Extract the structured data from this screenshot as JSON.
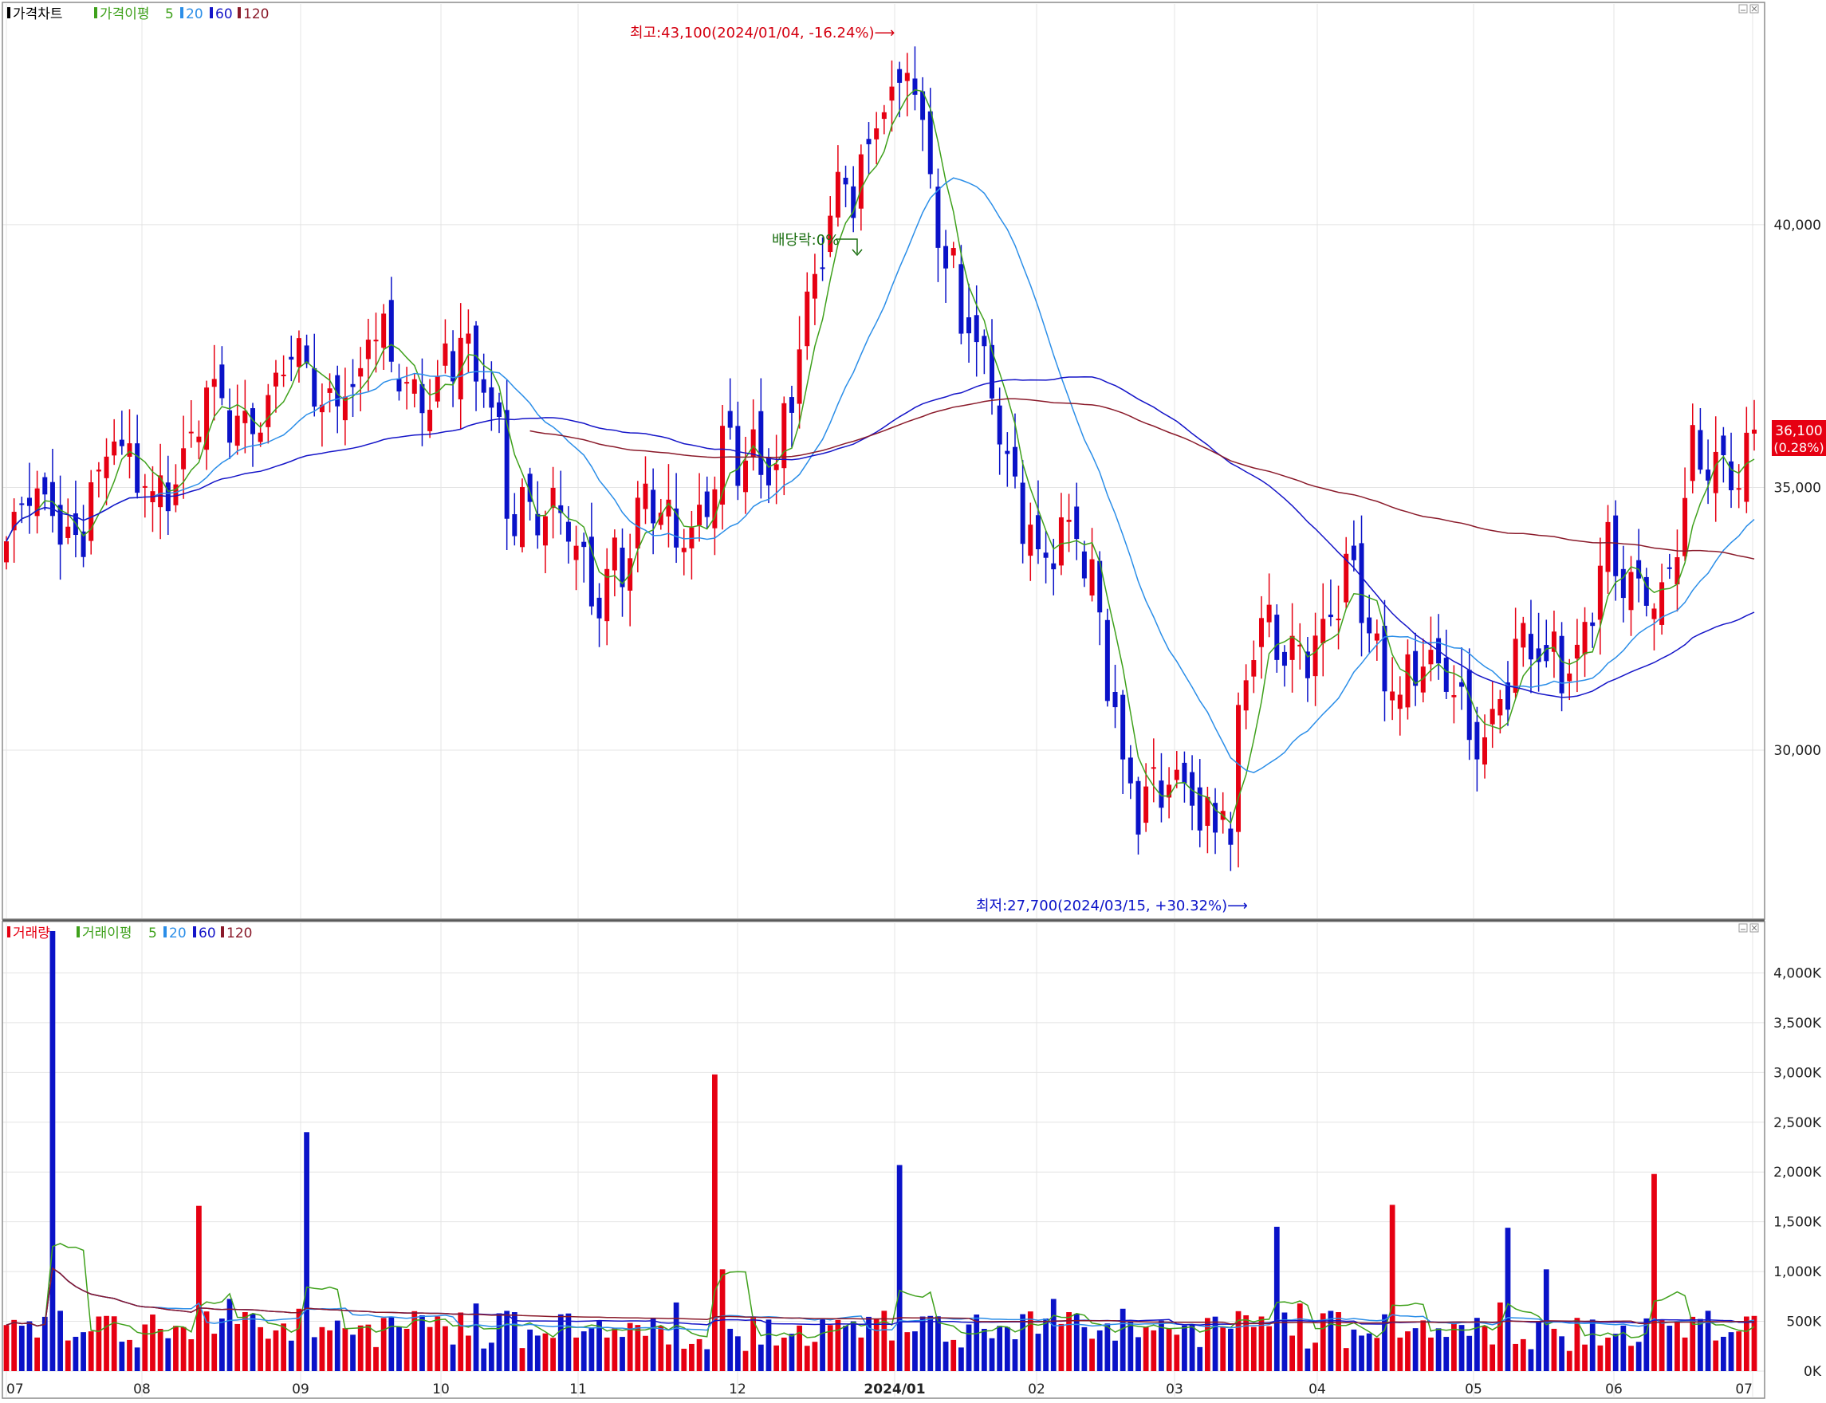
{
  "colors": {
    "up": "#e60012",
    "down": "#0a12c8",
    "ma5": "#3fa11c",
    "ma20": "#2b8ee8",
    "ma60": "#1515c8",
    "ma120": "#8a1a2a",
    "grid": "#e4e4e4",
    "axis_text": "#222222"
  },
  "price_panel": {
    "legend": {
      "title": "가격차트",
      "ma_label": "가격이평",
      "periods": [
        "5",
        "20",
        "60",
        "120"
      ]
    },
    "annotations": {
      "high": "최고:43,100(2024/01/04, -16.24%)⟶",
      "low": "최저:27,700(2024/03/15, +30.32%)⟶",
      "dividend": "배당락:0%"
    },
    "last_price": {
      "value": "36,100",
      "change": "(0.28%)"
    }
  },
  "volume_panel": {
    "legend": {
      "title": "거래량",
      "ma_label": "거래이평",
      "periods": [
        "5",
        "20",
        "60",
        "120"
      ]
    }
  },
  "x_axis_labels": [
    "07",
    "08",
    "09",
    "10",
    "11",
    "12",
    "2024/01",
    "02",
    "03",
    "04",
    "05",
    "06",
    "07"
  ],
  "chart_data": [
    {
      "type": "candlestick",
      "title": "가격차트",
      "y_ticks": [
        "30,000",
        "35,000",
        "40,000"
      ],
      "ylim": [
        26800,
        44200
      ],
      "grid": true,
      "moving_averages": [
        "5",
        "20",
        "60",
        "120"
      ],
      "highest": {
        "price": 43100,
        "date": "2024/01/04",
        "pct": "-16.24%"
      },
      "lowest": {
        "price": 27700,
        "date": "2024/03/15",
        "pct": "+30.32%"
      },
      "last_close": 36100,
      "close_anchors": [
        {
          "month": "07",
          "close": 34000
        },
        {
          "month": "08",
          "close": 35500
        },
        {
          "month": "09",
          "close": 37100
        },
        {
          "month": "10",
          "close": 37500
        },
        {
          "month": "11",
          "close": 33500
        },
        {
          "month": "12",
          "close": 35200
        },
        {
          "month": "2024/01",
          "close": 42300
        },
        {
          "month": "02",
          "close": 34500
        },
        {
          "month": "03",
          "close": 28600
        },
        {
          "month": "04",
          "close": 32700
        },
        {
          "month": "05",
          "close": 30700
        },
        {
          "month": "06",
          "close": 33000
        },
        {
          "month": "07",
          "close": 36100
        }
      ]
    },
    {
      "type": "bar",
      "title": "거래량",
      "y_ticks": [
        "0K",
        "500K",
        "1,000K",
        "1,500K",
        "2,000K",
        "2,500K",
        "3,000K",
        "3,500K",
        "4,000K"
      ],
      "ylim": [
        0,
        4500
      ],
      "unit": "K",
      "moving_averages": [
        "5",
        "20",
        "60",
        "120"
      ],
      "notable_spikes": [
        {
          "month": "07",
          "value": 4420
        },
        {
          "month": "08",
          "value": 1660
        },
        {
          "month": "09",
          "value": 2400
        },
        {
          "month": "11",
          "value": 2980
        },
        {
          "month": "2024/01",
          "value": 2070
        },
        {
          "month": "03",
          "value": 1450
        },
        {
          "month": "04",
          "value": 1670
        },
        {
          "month": "05",
          "value": 1440
        },
        {
          "month": "06",
          "value": 1980
        }
      ],
      "typical_level": 450
    }
  ]
}
